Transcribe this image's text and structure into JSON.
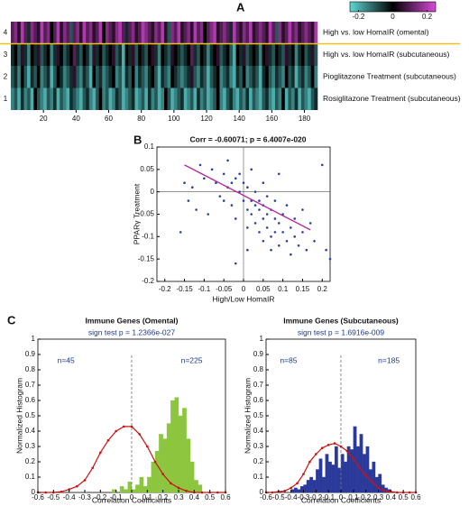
{
  "chart_data": [
    {
      "type": "heatmap",
      "panel": "A",
      "row_ticks": [
        4,
        3,
        2,
        1
      ],
      "row_labels": [
        "High vs. low HomaIR (omental)",
        "High vs. low HomaIR (subcutaneous)",
        "Pioglitazone Treatment (subcutaneous)",
        "Rosiglitazone Treatment (subcutaneous)"
      ],
      "xlim": [
        0,
        188
      ],
      "xticks": [
        20,
        40,
        60,
        80,
        100,
        120,
        140,
        160,
        180
      ],
      "colorbar": {
        "lim": [
          -0.25,
          0.25
        ],
        "ticks": [
          -0.2,
          0,
          0.2
        ]
      },
      "colors": {
        "negative": "#5fd8d8",
        "zero": "#000000",
        "positive": "#d84ad8"
      },
      "separator_color": "#f0c020",
      "values": [
        [
          0.1,
          0.15,
          0.05,
          0.2,
          0.1,
          -0.05,
          0.15,
          0.1,
          0.05,
          0.2,
          0.1,
          0.15,
          0,
          0.1,
          0.2,
          0.05,
          0.15,
          0.1,
          -0.1,
          0.1,
          0.15,
          0.05,
          0.2,
          0.1,
          0.15,
          0.05,
          0.1,
          0.2,
          0,
          0.15,
          0.1,
          0.05,
          0.15,
          0.2,
          0.1,
          -0.05,
          0.1,
          0.15,
          0.05,
          0.1,
          0.2,
          0.15,
          0.1,
          0.05,
          0.15,
          0.1,
          0.2,
          0.05,
          -0.1,
          0.15,
          0.1,
          0.2,
          0.05,
          0.1,
          0.15,
          0.05,
          0.2,
          0.1,
          0.15,
          0,
          0.1,
          0.15,
          0.2,
          0.05,
          0.1,
          0.15,
          0.1,
          -0.05,
          0.2,
          0.1,
          0.05,
          0.15,
          0.1,
          0.2,
          0.05,
          0.1,
          0.15,
          0.1,
          0.05,
          0.2,
          0.1,
          -0.1,
          0.15,
          0.05,
          0.1,
          0.2,
          0.1,
          0.15,
          0.05,
          0.1,
          0.15,
          0.1,
          0.05,
          0.2
        ],
        [
          -0.05,
          0,
          -0.1,
          0.05,
          -0.05,
          -0.15,
          0,
          -0.05,
          0.05,
          -0.1,
          -0.05,
          0,
          -0.15,
          -0.05,
          0.05,
          0,
          -0.1,
          -0.05,
          0,
          0.1,
          -0.05,
          -0.1,
          0,
          -0.05,
          -0.15,
          0.05,
          -0.05,
          0,
          -0.1,
          -0.05,
          0,
          0.05,
          -0.1,
          -0.05,
          -0.2,
          0,
          -0.05,
          0.05,
          -0.1,
          0,
          -0.05,
          -0.1,
          0,
          0.05,
          -0.05,
          -0.15,
          0,
          -0.05,
          -0.1,
          0.05,
          0,
          -0.05,
          -0.1,
          -0.05,
          0,
          0.1,
          -0.05,
          -0.1,
          0,
          -0.05,
          -0.15,
          -0.05,
          0,
          0.05,
          -0.1,
          -0.05,
          0,
          -0.1,
          -0.2,
          0,
          -0.05,
          0.05,
          -0.1,
          -0.05,
          0,
          -0.05,
          -0.15,
          0,
          0.05,
          -0.05,
          -0.1,
          0,
          -0.05,
          -0.1,
          0.05,
          -0.05,
          0,
          -0.15,
          -0.05,
          0,
          -0.1,
          -0.05,
          0.05,
          -0.1
        ],
        [
          -0.1,
          -0.05,
          -0.15,
          0,
          -0.1,
          -0.2,
          -0.05,
          -0.1,
          0,
          -0.15,
          -0.1,
          -0.05,
          -0.2,
          -0.1,
          0,
          -0.05,
          -0.15,
          -0.1,
          -0.05,
          0.05,
          -0.1,
          -0.15,
          -0.05,
          -0.1,
          -0.2,
          0,
          -0.1,
          -0.05,
          -0.15,
          -0.1,
          -0.05,
          0,
          -0.15,
          -0.1,
          -0.2,
          -0.05,
          -0.1,
          0,
          -0.15,
          -0.05,
          -0.1,
          -0.15,
          -0.05,
          0,
          -0.1,
          -0.2,
          -0.05,
          -0.1,
          -0.15,
          0,
          -0.05,
          -0.1,
          -0.15,
          -0.1,
          -0.05,
          0.05,
          -0.1,
          -0.15,
          -0.05,
          -0.1,
          -0.2,
          -0.1,
          -0.05,
          0,
          -0.15,
          -0.1,
          -0.05,
          -0.15,
          -0.2,
          -0.05,
          -0.1,
          0,
          -0.15,
          -0.1,
          -0.05,
          -0.1,
          -0.2,
          -0.05,
          0,
          -0.1,
          -0.15,
          -0.05,
          -0.1,
          -0.15,
          0,
          -0.1,
          -0.05,
          -0.2,
          -0.1,
          -0.05,
          -0.15,
          -0.1,
          0,
          -0.15
        ],
        [
          -0.15,
          -0.1,
          -0.2,
          -0.05,
          -0.15,
          -0.1,
          -0.2,
          0,
          -0.1,
          -0.15,
          -0.2,
          -0.1,
          -0.15,
          -0.05,
          -0.2,
          -0.1,
          -0.15,
          -0.2,
          -0.05,
          -0.1,
          -0.15,
          -0.2,
          -0.1,
          -0.05,
          -0.15,
          -0.2,
          -0.1,
          0,
          -0.15,
          -0.1,
          -0.2,
          -0.15,
          -0.05,
          -0.1,
          -0.2,
          -0.15,
          -0.1,
          -0.05,
          -0.2,
          -0.15,
          -0.1,
          -0.2,
          -0.05,
          -0.15,
          -0.1,
          -0.2,
          -0.15,
          0,
          -0.1,
          -0.2,
          -0.15,
          -0.1,
          -0.05,
          -0.2,
          -0.15,
          -0.1,
          -0.2,
          -0.05,
          -0.15,
          -0.1,
          -0.2,
          -0.15,
          -0.1,
          0,
          -0.15,
          -0.2,
          -0.1,
          -0.05,
          -0.15,
          -0.2,
          -0.1,
          -0.15,
          -0.05,
          -0.2,
          -0.1,
          -0.15,
          -0.2,
          -0.1,
          -0.05,
          -0.15,
          -0.2,
          -0.1,
          -0.15,
          0,
          -0.2,
          -0.1,
          -0.15,
          -0.05,
          -0.2,
          -0.1,
          -0.15,
          -0.2,
          -0.1,
          -0.05
        ]
      ]
    },
    {
      "type": "scatter",
      "panel": "B",
      "title": "Corr = -0.60071; p = 6.4007e-020",
      "xlabel": "High/Low HomaIR",
      "ylabel": "PPARγ Treatment",
      "xlim": [
        -0.22,
        0.22
      ],
      "ylim": [
        -0.2,
        0.1
      ],
      "xticks": [
        -0.2,
        -0.15,
        -0.1,
        -0.05,
        0,
        0.05,
        0.1,
        0.15,
        0.2
      ],
      "yticks": [
        -0.2,
        -0.15,
        -0.1,
        -0.05,
        0,
        0.05,
        0.1
      ],
      "color": "#2f3f9f",
      "x": [
        -0.15,
        -0.14,
        -0.13,
        -0.12,
        -0.11,
        -0.1,
        -0.09,
        -0.08,
        -0.07,
        -0.06,
        -0.05,
        -0.05,
        -0.04,
        -0.04,
        -0.03,
        -0.03,
        -0.02,
        -0.02,
        -0.01,
        -0.01,
        0,
        0,
        0.01,
        0.01,
        0.01,
        0.02,
        0.02,
        0.02,
        0.03,
        0.03,
        0.03,
        0.04,
        0.04,
        0.04,
        0.05,
        0.05,
        0.05,
        0.05,
        0.06,
        0.06,
        0.06,
        0.07,
        0.07,
        0.07,
        0.08,
        0.08,
        0.08,
        0.09,
        0.09,
        0.1,
        0.1,
        0.11,
        0.11,
        0.12,
        0.12,
        0.13,
        0.13,
        0.14,
        0.15,
        0.15,
        0.16,
        0.17,
        0.18,
        0.2,
        0.21,
        0.22,
        -0.16,
        0.09,
        0.01,
        -0.02
      ],
      "y": [
        0.02,
        -0.02,
        0.01,
        -0.04,
        0.06,
        0.03,
        -0.05,
        0.05,
        0.02,
        -0.01,
        0.04,
        -0.02,
        0.01,
        0.07,
        -0.03,
        0.02,
        0.03,
        -0.06,
        0,
        0.04,
        -0.02,
        0.02,
        -0.04,
        0.01,
        -0.08,
        -0.02,
        -0.05,
        0.05,
        -0.03,
        -0.07,
        0,
        -0.04,
        -0.09,
        -0.02,
        -0.06,
        -0.03,
        -0.11,
        0.02,
        -0.05,
        -0.08,
        -0.01,
        -0.04,
        -0.1,
        -0.13,
        -0.06,
        -0.02,
        -0.09,
        -0.07,
        -0.12,
        -0.05,
        -0.09,
        -0.03,
        -0.11,
        -0.08,
        -0.14,
        -0.06,
        -0.1,
        -0.12,
        -0.04,
        -0.09,
        -0.13,
        -0.07,
        -0.11,
        0.06,
        -0.13,
        -0.15,
        -0.09,
        0.04,
        -0.13,
        -0.16
      ],
      "fit": {
        "x": [
          -0.15,
          0.17
        ],
        "y": [
          0.06,
          -0.085
        ],
        "color": "#b02aa0"
      }
    },
    {
      "type": "histogram",
      "title": "Immune Genes (Omental)",
      "panel": "C",
      "xlabel": "Correlation Coefficients",
      "ylabel": "Normalized Histogram",
      "sign_test": "sign test p = 1.2366e-027",
      "n_left": "n=45",
      "n_right": "n=225",
      "xlim": [
        -0.6,
        0.6
      ],
      "ylim": [
        0,
        1
      ],
      "xticks": [
        -0.6,
        -0.5,
        -0.4,
        -0.3,
        -0.2,
        -0.1,
        0,
        0.1,
        0.2,
        0.3,
        0.4,
        0.5,
        0.6
      ],
      "yticks": [
        0,
        0.1,
        0.2,
        0.3,
        0.4,
        0.5,
        0.6,
        0.7,
        0.8,
        0.9,
        1
      ],
      "color": "#8cc63f",
      "bins": [
        -0.125,
        -0.1,
        -0.075,
        -0.05,
        -0.025,
        0,
        0.025,
        0.05,
        0.075,
        0.1,
        0.125,
        0.15,
        0.175,
        0.2,
        0.225,
        0.25,
        0.275,
        0.3,
        0.325,
        0.35,
        0.375,
        0.4,
        0.425,
        0.45
      ],
      "values": [
        0.02,
        0,
        0.04,
        0.02,
        0.07,
        0.02,
        0.05,
        0.1,
        0.04,
        0.1,
        0.2,
        0.27,
        0.38,
        0.35,
        0.45,
        0.6,
        0.62,
        0.5,
        0.55,
        0.35,
        0.2,
        0.08,
        0.05
      ],
      "curve": {
        "color": "#cc1111",
        "x": [
          -0.6,
          -0.55,
          -0.5,
          -0.45,
          -0.4,
          -0.35,
          -0.3,
          -0.25,
          -0.2,
          -0.15,
          -0.1,
          -0.05,
          0,
          0.05,
          0.1,
          0.15,
          0.2,
          0.25,
          0.3,
          0.35,
          0.4,
          0.45,
          0.5,
          0.55,
          0.6
        ],
        "y": [
          0,
          0,
          0,
          0.005,
          0.02,
          0.04,
          0.08,
          0.16,
          0.26,
          0.34,
          0.4,
          0.43,
          0.43,
          0.38,
          0.3,
          0.2,
          0.12,
          0.06,
          0.03,
          0.01,
          0,
          0,
          0,
          0,
          0
        ]
      }
    },
    {
      "type": "histogram",
      "title": "Immune Genes (Subcutaneous)",
      "xlabel": "Correlation Coefficients",
      "ylabel": "Normalized Histogram",
      "sign_test": "sign test p = 1.6916e-009",
      "n_left": "n=85",
      "n_right": "n=185",
      "xlim": [
        -0.6,
        0.6
      ],
      "ylim": [
        0,
        1
      ],
      "xticks": [
        -0.6,
        -0.5,
        -0.4,
        -0.3,
        -0.2,
        -0.1,
        0,
        0.1,
        0.2,
        0.3,
        0.4,
        0.5,
        0.6
      ],
      "yticks": [
        0,
        0.1,
        0.2,
        0.3,
        0.4,
        0.5,
        0.6,
        0.7,
        0.8,
        0.9,
        1
      ],
      "color": "#2b3a9a",
      "bins": [
        -0.4,
        -0.375,
        -0.35,
        -0.325,
        -0.3,
        -0.275,
        -0.25,
        -0.225,
        -0.2,
        -0.175,
        -0.15,
        -0.125,
        -0.1,
        -0.075,
        -0.05,
        -0.025,
        0,
        0.025,
        0.05,
        0.075,
        0.1,
        0.125,
        0.15,
        0.175,
        0.2,
        0.225,
        0.25,
        0.275,
        0.3,
        0.325,
        0.35,
        0.375,
        0.4
      ],
      "values": [
        0.02,
        0.03,
        0.02,
        0.04,
        0.05,
        0.08,
        0.1,
        0.08,
        0.15,
        0.22,
        0.1,
        0.25,
        0.2,
        0.18,
        0.3,
        0.16,
        0.25,
        0.2,
        0.3,
        0.28,
        0.43,
        0.3,
        0.38,
        0.25,
        0.3,
        0.15,
        0.2,
        0.1,
        0.12,
        0.05,
        0.03,
        0.02
      ],
      "curve": {
        "color": "#cc1111",
        "x": [
          -0.6,
          -0.55,
          -0.5,
          -0.45,
          -0.4,
          -0.35,
          -0.3,
          -0.25,
          -0.2,
          -0.15,
          -0.1,
          -0.05,
          0,
          0.05,
          0.1,
          0.15,
          0.2,
          0.25,
          0.3,
          0.35,
          0.4,
          0.45,
          0.5,
          0.55,
          0.6
        ],
        "y": [
          0,
          0,
          0.005,
          0.01,
          0.03,
          0.06,
          0.12,
          0.2,
          0.25,
          0.29,
          0.31,
          0.32,
          0.3,
          0.27,
          0.22,
          0.16,
          0.11,
          0.07,
          0.03,
          0.01,
          0.005,
          0,
          0,
          0,
          0
        ]
      }
    }
  ]
}
